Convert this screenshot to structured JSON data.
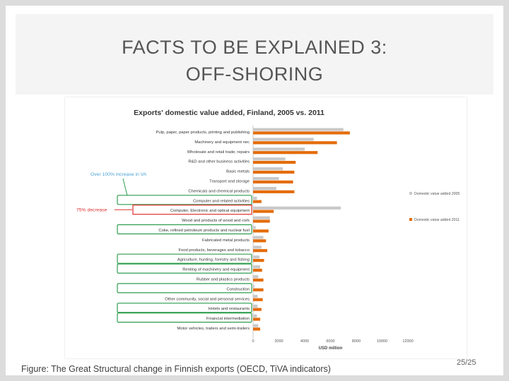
{
  "slide": {
    "title_line1": "FACTS TO BE EXPLAINED 3:",
    "title_line2": "OFF-SHORING",
    "caption": "Figure:  The Great Structural change in Finnish exports (OECD, TiVA indicators)",
    "page_number": "25/25"
  },
  "colors": {
    "series_2005": "#c9c9c9",
    "series_2011": "#e46c0a",
    "annotation_green": "#2e9e4f",
    "annotation_red": "#e03030",
    "annotation_blue_text": "#4aa3d8"
  },
  "chart_data": {
    "type": "bar",
    "orientation": "horizontal",
    "title": "Exports' domestic value added, Finland, 2005 vs. 2011",
    "xlabel": "USD million",
    "xlim": [
      0,
      12000
    ],
    "xticks": [
      "0",
      "2000",
      "4000",
      "6000",
      "8000",
      "10000",
      "12000"
    ],
    "categories": [
      "Pulp, paper, paper products, printing and publishing",
      "Machinery and equipment nec",
      "Wholesale and retail trade; repairs",
      "R&D and other business activities",
      "Basic metals",
      "Transport and storage",
      "Chemicals and chemical products",
      "Computer and related activities",
      "Computer, Electronic and optical equipment",
      "Wood and products of wood and cork",
      "Coke, refined petroleum products and nuclear fuel",
      "Fabricated metal products",
      "Food products, beverages and tobacco",
      "Agriculture, hunting, forestry and fishing",
      "Renting of machinery and equipment",
      "Rubber and plastics products",
      "Construction",
      "Other community, social and personal services",
      "Hotels and restaurants",
      "Financial intermediation",
      "Motor vehicles, trailers and semi-trailers"
    ],
    "series": [
      {
        "name": "Domestic value added 2005",
        "values": [
          7000,
          4700,
          4000,
          2500,
          2300,
          2000,
          1800,
          300,
          6800,
          1300,
          200,
          800,
          650,
          500,
          550,
          400,
          100,
          350,
          350,
          300,
          400
        ]
      },
      {
        "name": "Domestic value added 2011",
        "values": [
          7500,
          6500,
          5000,
          3300,
          3200,
          3100,
          3200,
          650,
          1600,
          1300,
          1200,
          1000,
          1100,
          850,
          700,
          800,
          800,
          750,
          650,
          550,
          550
        ]
      }
    ],
    "legend_position": "right",
    "annotations": [
      {
        "text": "Over 100% increase in VA",
        "color": "green"
      },
      {
        "text": "75% decrease",
        "color": "red"
      }
    ],
    "grid": false
  }
}
